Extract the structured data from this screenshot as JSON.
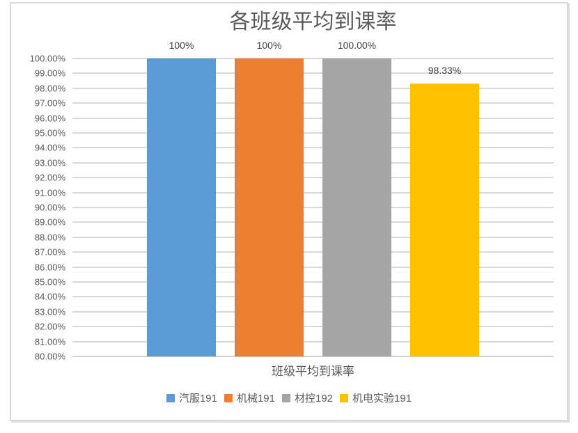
{
  "palette": {
    "background": "#FFFFFF",
    "frame_border": "#D9D9D9",
    "gridline": "#D9D9D9",
    "title_text": "#595959",
    "axis_text": "#595959",
    "data_label_text": "#404040"
  },
  "chart_data": {
    "type": "bar",
    "title": "各班级平均到课率",
    "categories": [
      "汽服191",
      "机械191",
      "材控192",
      "机电实验191"
    ],
    "values": [
      100,
      100,
      100,
      98.33
    ],
    "bar_labels": [
      "100%",
      "100%",
      "100.00%",
      "98.33%"
    ],
    "colors": [
      "#5B9BD5",
      "#ED7D31",
      "#A5A5A5",
      "#FFC000"
    ],
    "xlabel": "班级平均到课率",
    "ylabel": "",
    "ylim": [
      80,
      100
    ],
    "ytick_step": 1,
    "grid": true,
    "legend_position": "bottom",
    "ytick_labels": [
      "100.00%",
      "99.00%",
      "98.00%",
      "97.00%",
      "96.00%",
      "95.00%",
      "94.00%",
      "93.00%",
      "92.00%",
      "91.00%",
      "90.00%",
      "89.00%",
      "88.00%",
      "87.00%",
      "86.00%",
      "85.00%",
      "84.00%",
      "83.00%",
      "82.00%",
      "81.00%",
      "80.00%"
    ],
    "legend": [
      {
        "label": "汽服191",
        "color": "#5B9BD5"
      },
      {
        "label": "机械191",
        "color": "#ED7D31"
      },
      {
        "label": "材控192",
        "color": "#A5A5A5"
      },
      {
        "label": "机电实验191",
        "color": "#FFC000"
      }
    ]
  }
}
